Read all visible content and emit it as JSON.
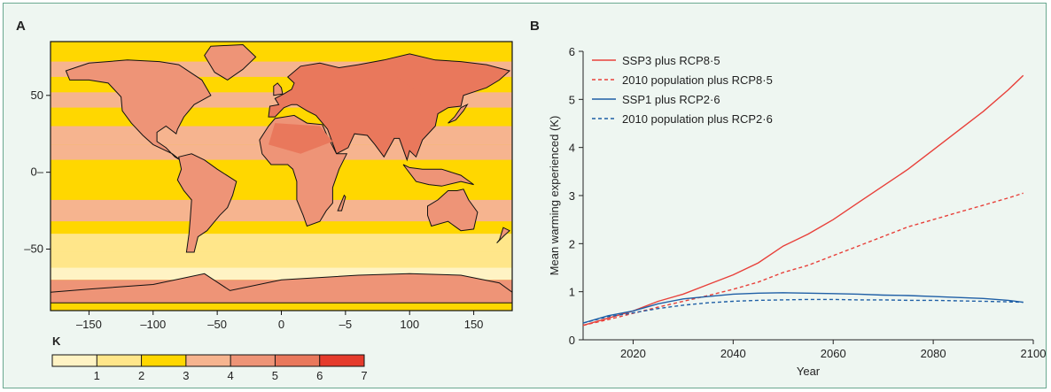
{
  "panels": [
    {
      "label": "A"
    },
    {
      "label": "B"
    }
  ],
  "map": {
    "x_ticks": [
      "–150",
      "–100",
      "–50",
      "0",
      "–5",
      "100",
      "150"
    ],
    "y_ticks": [
      "50",
      "0–",
      "–50"
    ],
    "colorbar": {
      "unit": "K",
      "labels": [
        "1",
        "2",
        "3",
        "4",
        "5",
        "6",
        "7"
      ],
      "colors": [
        "#fff3c4",
        "#ffe68a",
        "#ffd700",
        "#f6b48f",
        "#ee9477",
        "#e9785c",
        "#e53b2c"
      ]
    }
  },
  "chart_data": {
    "type": "line",
    "ylabel": "Mean warming experienced (K)",
    "xlabel": "Year",
    "xlim": [
      2010,
      2100
    ],
    "ylim": [
      0,
      6
    ],
    "x_ticks": [
      "2020",
      "2040",
      "2060",
      "2080",
      "2100"
    ],
    "y_ticks": [
      "0",
      "1",
      "2",
      "3",
      "4",
      "5",
      "6"
    ],
    "legend_position": "top-left",
    "series": [
      {
        "name": "SSP3 plus RCP8·5",
        "color": "#e8403a",
        "dash": "solid",
        "x": [
          2010,
          2015,
          2020,
          2025,
          2030,
          2035,
          2040,
          2045,
          2050,
          2055,
          2060,
          2065,
          2070,
          2075,
          2080,
          2085,
          2090,
          2095,
          2098
        ],
        "y": [
          0.3,
          0.45,
          0.6,
          0.8,
          0.95,
          1.15,
          1.35,
          1.6,
          1.95,
          2.2,
          2.5,
          2.85,
          3.2,
          3.55,
          3.95,
          4.35,
          4.75,
          5.2,
          5.5
        ]
      },
      {
        "name": "2010 population plus RCP8·5",
        "color": "#e8403a",
        "dash": "dashed",
        "x": [
          2010,
          2015,
          2020,
          2025,
          2030,
          2035,
          2040,
          2045,
          2050,
          2055,
          2060,
          2065,
          2070,
          2075,
          2080,
          2085,
          2090,
          2095,
          2098
        ],
        "y": [
          0.3,
          0.42,
          0.55,
          0.68,
          0.8,
          0.92,
          1.05,
          1.2,
          1.4,
          1.55,
          1.75,
          1.95,
          2.15,
          2.35,
          2.5,
          2.65,
          2.8,
          2.95,
          3.05
        ]
      },
      {
        "name": "SSP1 plus RCP2·6",
        "color": "#1f5fa6",
        "dash": "solid",
        "x": [
          2010,
          2015,
          2020,
          2025,
          2030,
          2035,
          2040,
          2045,
          2050,
          2055,
          2060,
          2065,
          2070,
          2075,
          2080,
          2085,
          2090,
          2095,
          2098
        ],
        "y": [
          0.35,
          0.5,
          0.6,
          0.75,
          0.85,
          0.9,
          0.95,
          0.97,
          0.98,
          0.97,
          0.96,
          0.95,
          0.93,
          0.92,
          0.9,
          0.88,
          0.86,
          0.82,
          0.78
        ]
      },
      {
        "name": "2010 population plus RCP2·6",
        "color": "#1f5fa6",
        "dash": "dashed",
        "x": [
          2010,
          2015,
          2020,
          2025,
          2030,
          2035,
          2040,
          2045,
          2050,
          2055,
          2060,
          2065,
          2070,
          2075,
          2080,
          2085,
          2090,
          2095,
          2098
        ],
        "y": [
          0.35,
          0.48,
          0.56,
          0.65,
          0.72,
          0.77,
          0.8,
          0.82,
          0.83,
          0.84,
          0.84,
          0.83,
          0.83,
          0.82,
          0.82,
          0.81,
          0.8,
          0.79,
          0.78
        ]
      }
    ]
  }
}
